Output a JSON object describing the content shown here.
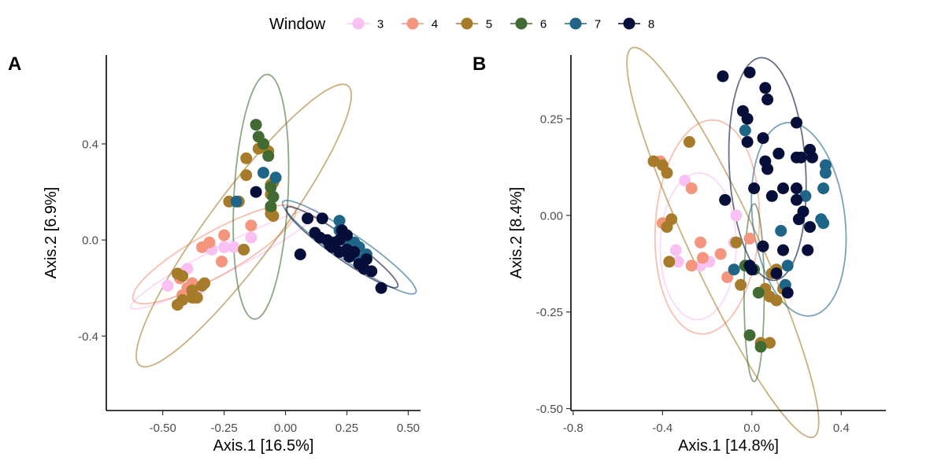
{
  "legend": {
    "title": "Window",
    "items": [
      {
        "label": "3",
        "color": "#F9C1F2"
      },
      {
        "label": "4",
        "color": "#F4957D"
      },
      {
        "label": "5",
        "color": "#A67C2A"
      },
      {
        "label": "6",
        "color": "#426B34"
      },
      {
        "label": "7",
        "color": "#1F6587"
      },
      {
        "label": "8",
        "color": "#050F3A"
      }
    ]
  },
  "chart_data": [
    {
      "type": "scatter",
      "panel": "A",
      "xlabel": "Axis.1   [16.5%]",
      "ylabel": "Axis.2   [6.9%]",
      "xlim": [
        -0.73,
        0.55
      ],
      "ylim": [
        -0.71,
        0.77
      ],
      "xticks": [
        -0.5,
        -0.25,
        0.0,
        0.25,
        0.5
      ],
      "xtick_labels": [
        "-0.50",
        "-0.25",
        "0.00",
        "0.25",
        "0.50"
      ],
      "yticks": [
        -0.4,
        0.0,
        0.4
      ],
      "ytick_labels": [
        "-0.4",
        "0.0",
        "0.4"
      ],
      "series": [
        {
          "name": "3",
          "points": [
            [
              -0.48,
              -0.19
            ],
            [
              -0.4,
              -0.12
            ],
            [
              -0.3,
              -0.04
            ],
            [
              -0.25,
              -0.03
            ],
            [
              -0.21,
              -0.03
            ],
            [
              -0.14,
              0.01
            ],
            [
              -0.43,
              -0.15
            ],
            [
              -0.38,
              -0.23
            ],
            [
              -0.35,
              -0.2
            ]
          ],
          "ellipse": {
            "cx": -0.25,
            "cy": -0.08,
            "rx": 0.43,
            "ry": 0.055,
            "angle": 28
          }
        },
        {
          "name": "4",
          "points": [
            [
              -0.43,
              -0.16
            ],
            [
              -0.38,
              -0.18
            ],
            [
              -0.42,
              -0.23
            ],
            [
              -0.34,
              -0.03
            ],
            [
              -0.31,
              -0.01
            ],
            [
              -0.25,
              0.02
            ],
            [
              -0.26,
              -0.09
            ],
            [
              -0.14,
              0.06
            ],
            [
              -0.4,
              -0.2
            ],
            [
              -0.37,
              -0.24
            ]
          ],
          "ellipse": {
            "cx": -0.29,
            "cy": -0.06,
            "rx": 0.38,
            "ry": 0.09,
            "angle": 30
          }
        },
        {
          "name": "5",
          "points": [
            [
              -0.44,
              -0.14
            ],
            [
              -0.42,
              -0.15
            ],
            [
              -0.38,
              -0.21
            ],
            [
              -0.36,
              -0.24
            ],
            [
              -0.42,
              -0.25
            ],
            [
              -0.44,
              -0.27
            ],
            [
              -0.34,
              -0.19
            ],
            [
              -0.33,
              -0.18
            ],
            [
              -0.38,
              -0.24
            ],
            [
              -0.17,
              -0.04
            ],
            [
              -0.23,
              0.16
            ],
            [
              -0.19,
              0.16
            ],
            [
              -0.16,
              0.34
            ],
            [
              -0.16,
              0.27
            ],
            [
              -0.11,
              0.38
            ],
            [
              -0.07,
              0.37
            ],
            [
              -0.09,
              0.4
            ],
            [
              -0.05,
              0.24
            ],
            [
              -0.06,
              0.23
            ],
            [
              -0.06,
              0.19
            ],
            [
              -0.06,
              0.13
            ],
            [
              -0.06,
              0.11
            ],
            [
              -0.05,
              0.1
            ]
          ],
          "ellipse": {
            "cx": -0.17,
            "cy": 0.06,
            "rx": 0.72,
            "ry": 0.14,
            "angle": 54
          }
        },
        {
          "name": "6",
          "points": [
            [
              -0.12,
              0.48
            ],
            [
              -0.09,
              0.4
            ],
            [
              -0.06,
              0.22
            ],
            [
              -0.05,
              0.18
            ],
            [
              -0.06,
              0.14
            ],
            [
              -0.07,
              0.35
            ],
            [
              -0.11,
              0.43
            ]
          ],
          "ellipse": {
            "cx": -0.1,
            "cy": 0.18,
            "rx": 0.51,
            "ry": 0.11,
            "angle": 87
          }
        },
        {
          "name": "7",
          "points": [
            [
              -0.2,
              0.16
            ],
            [
              -0.09,
              0.28
            ],
            [
              -0.04,
              0.26
            ],
            [
              0.22,
              0.08
            ],
            [
              0.22,
              0.04
            ],
            [
              0.25,
              0.0
            ],
            [
              0.28,
              -0.01
            ],
            [
              0.3,
              -0.03
            ],
            [
              0.33,
              -0.06
            ],
            [
              0.3,
              -0.08
            ]
          ],
          "ellipse": {
            "cx": 0.26,
            "cy": -0.03,
            "rx": 0.33,
            "ry": 0.055,
            "angle": -35
          }
        },
        {
          "name": "8",
          "points": [
            [
              -0.12,
              0.2
            ],
            [
              0.06,
              -0.06
            ],
            [
              0.09,
              0.09
            ],
            [
              0.12,
              0.03
            ],
            [
              0.15,
              0.09
            ],
            [
              0.14,
              0.01
            ],
            [
              0.18,
              -0.02
            ],
            [
              0.17,
              0.0
            ],
            [
              0.2,
              -0.01
            ],
            [
              0.22,
              0.0
            ],
            [
              0.23,
              0.04
            ],
            [
              0.25,
              0.02
            ],
            [
              0.22,
              -0.05
            ],
            [
              0.26,
              -0.07
            ],
            [
              0.28,
              -0.05
            ],
            [
              0.3,
              -0.1
            ],
            [
              0.32,
              -0.12
            ],
            [
              0.35,
              -0.13
            ],
            [
              0.33,
              -0.08
            ],
            [
              0.39,
              -0.2
            ],
            [
              0.25,
              -0.04
            ],
            [
              0.19,
              -0.03
            ]
          ],
          "ellipse": {
            "cx": 0.23,
            "cy": -0.03,
            "rx": 0.28,
            "ry": 0.045,
            "angle": -36
          }
        }
      ]
    },
    {
      "type": "scatter",
      "panel": "B",
      "xlabel": "Axis.1   [14.8%]",
      "ylabel": "Axis.2   [8.4%]",
      "xlim": [
        -0.81,
        0.6
      ],
      "ylim": [
        -0.505,
        0.415
      ],
      "xticks": [
        -0.8,
        -0.4,
        0.0,
        0.4
      ],
      "xtick_labels": [
        "-0.8",
        "-0.4",
        "0.0",
        "0.4"
      ],
      "yticks": [
        -0.5,
        -0.25,
        0.0,
        0.25
      ],
      "ytick_labels": [
        "-0.50",
        "-0.25",
        "0.00",
        "0.25"
      ],
      "series": [
        {
          "name": "3",
          "points": [
            [
              -0.3,
              0.09
            ],
            [
              -0.07,
              0.0
            ],
            [
              -0.34,
              -0.09
            ],
            [
              -0.33,
              -0.12
            ],
            [
              -0.23,
              -0.13
            ],
            [
              -0.19,
              -0.12
            ],
            [
              -0.08,
              -0.07
            ]
          ],
          "ellipse": {
            "cx": -0.24,
            "cy": -0.08,
            "rx": 0.17,
            "ry": 0.19,
            "angle": -5
          }
        },
        {
          "name": "4",
          "points": [
            [
              -0.41,
              0.14
            ],
            [
              -0.27,
              0.07
            ],
            [
              -0.23,
              -0.07
            ],
            [
              -0.22,
              -0.11
            ],
            [
              -0.14,
              -0.1
            ],
            [
              -0.11,
              -0.16
            ],
            [
              -0.01,
              -0.06
            ],
            [
              -0.4,
              -0.02
            ],
            [
              -0.27,
              -0.13
            ]
          ],
          "ellipse": {
            "cx": -0.2,
            "cy": -0.03,
            "rx": 0.23,
            "ry": 0.28,
            "angle": -15
          }
        },
        {
          "name": "5",
          "points": [
            [
              -0.44,
              0.14
            ],
            [
              -0.4,
              0.13
            ],
            [
              -0.38,
              0.11
            ],
            [
              -0.28,
              0.19
            ],
            [
              -0.36,
              -0.01
            ],
            [
              -0.38,
              -0.03
            ],
            [
              -0.37,
              -0.12
            ],
            [
              -0.07,
              -0.07
            ],
            [
              -0.05,
              -0.18
            ],
            [
              0.09,
              -0.15
            ],
            [
              0.11,
              -0.14
            ],
            [
              0.06,
              -0.19
            ],
            [
              0.08,
              -0.21
            ],
            [
              0.11,
              -0.22
            ],
            [
              0.14,
              -0.19
            ],
            [
              0.08,
              -0.33
            ],
            [
              0.04,
              -0.33
            ]
          ],
          "ellipse": {
            "cx": -0.13,
            "cy": -0.07,
            "rx": 0.65,
            "ry": 0.13,
            "angle": -50
          }
        },
        {
          "name": "6",
          "points": [
            [
              -0.03,
              -0.13
            ],
            [
              0.01,
              -0.14
            ],
            [
              0.03,
              -0.2
            ],
            [
              -0.01,
              -0.31
            ],
            [
              0.04,
              -0.34
            ]
          ],
          "ellipse": {
            "cx": 0.01,
            "cy": -0.2,
            "rx": 0.045,
            "ry": 0.23,
            "angle": 0
          }
        },
        {
          "name": "7",
          "points": [
            [
              -0.03,
              0.22
            ],
            [
              -0.08,
              -0.14
            ],
            [
              0.15,
              -0.18
            ],
            [
              0.16,
              -0.13
            ],
            [
              0.13,
              -0.04
            ],
            [
              0.24,
              0.05
            ],
            [
              0.33,
              0.13
            ],
            [
              0.33,
              0.11
            ],
            [
              0.32,
              0.07
            ],
            [
              0.31,
              -0.01
            ],
            [
              0.32,
              -0.02
            ]
          ],
          "ellipse": {
            "cx": 0.21,
            "cy": -0.01,
            "rx": 0.2,
            "ry": 0.26,
            "angle": 25
          }
        },
        {
          "name": "8",
          "points": [
            [
              -0.13,
              0.36
            ],
            [
              -0.01,
              0.37
            ],
            [
              0.06,
              0.33
            ],
            [
              0.07,
              0.3
            ],
            [
              -0.04,
              0.27
            ],
            [
              -0.02,
              0.25
            ],
            [
              0.05,
              0.2
            ],
            [
              -0.02,
              0.19
            ],
            [
              0.2,
              0.24
            ],
            [
              0.12,
              0.16
            ],
            [
              0.06,
              0.14
            ],
            [
              0.07,
              0.12
            ],
            [
              0.2,
              0.15
            ],
            [
              0.22,
              0.15
            ],
            [
              0.26,
              0.17
            ],
            [
              0.27,
              0.15
            ],
            [
              0.01,
              0.07
            ],
            [
              0.09,
              0.05
            ],
            [
              0.14,
              0.07
            ],
            [
              0.2,
              0.07
            ],
            [
              0.2,
              0.04
            ],
            [
              0.23,
              0.01
            ],
            [
              0.21,
              -0.01
            ],
            [
              0.26,
              -0.03
            ],
            [
              0.05,
              -0.08
            ],
            [
              0.14,
              -0.09
            ],
            [
              0.25,
              -0.09
            ],
            [
              -0.12,
              0.04
            ],
            [
              0.0,
              -0.14
            ],
            [
              0.11,
              -0.15
            ],
            [
              0.16,
              -0.2
            ],
            [
              -0.01,
              -0.13
            ]
          ],
          "ellipse": {
            "cx": 0.07,
            "cy": 0.12,
            "rx": 0.17,
            "ry": 0.29,
            "angle": 8
          }
        }
      ]
    }
  ]
}
